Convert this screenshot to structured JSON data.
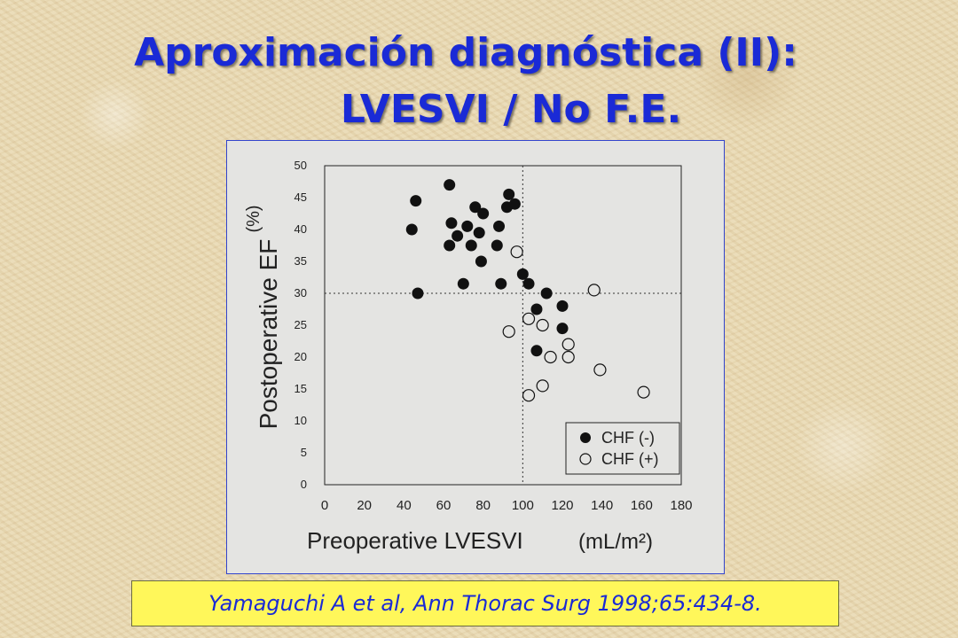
{
  "slide": {
    "title_line1": "Aproximación diagnóstica (II):",
    "title_line2": "LVESVI / No F.E.",
    "citation": "Yamaguchi A et al, Ann Thorac Surg 1998;65:434-8."
  },
  "colors": {
    "title": "#1a2ad6",
    "citation_bg": "#fff75a",
    "chart_bg": "#e4e4e2",
    "markers": "#111111"
  },
  "chart_data": {
    "type": "scatter",
    "xlabel": "Preoperative LVESVI",
    "xunit": "(mL/m²)",
    "ylabel": "Postoperative EF",
    "yunit": "(%)",
    "xlim": [
      0,
      180
    ],
    "ylim": [
      0,
      50
    ],
    "xticks": [
      0,
      20,
      40,
      60,
      80,
      100,
      120,
      140,
      160,
      180
    ],
    "yticks": [
      0,
      5,
      10,
      15,
      20,
      25,
      30,
      35,
      40,
      45,
      50
    ],
    "reference_lines": {
      "x": 100,
      "y": 30,
      "style": "dotted"
    },
    "legend_position": "bottom-right",
    "series": [
      {
        "name": "CHF (-)",
        "marker": "filled-circle",
        "points": [
          [
            44,
            40
          ],
          [
            46,
            44.5
          ],
          [
            47,
            30
          ],
          [
            63,
            47
          ],
          [
            64,
            41
          ],
          [
            63,
            37.5
          ],
          [
            67,
            39
          ],
          [
            70,
            31.5
          ],
          [
            72,
            40.5
          ],
          [
            74,
            37.5
          ],
          [
            76,
            43.5
          ],
          [
            78,
            39.5
          ],
          [
            79,
            35
          ],
          [
            80,
            42.5
          ],
          [
            87,
            37.5
          ],
          [
            88,
            40.5
          ],
          [
            89,
            31.5
          ],
          [
            92,
            43.5
          ],
          [
            93,
            45.5
          ],
          [
            96,
            44
          ],
          [
            100,
            33
          ],
          [
            103,
            31.5
          ],
          [
            107,
            27.5
          ],
          [
            112,
            30
          ],
          [
            107,
            21
          ],
          [
            120,
            28
          ],
          [
            120,
            24.5
          ]
        ]
      },
      {
        "name": "CHF (+)",
        "marker": "open-circle",
        "points": [
          [
            93,
            24
          ],
          [
            97,
            36.5
          ],
          [
            103,
            26
          ],
          [
            103,
            14
          ],
          [
            110,
            15.5
          ],
          [
            110,
            25
          ],
          [
            114,
            20
          ],
          [
            123,
            20
          ],
          [
            123,
            22
          ],
          [
            136,
            30.5
          ],
          [
            139,
            18
          ],
          [
            161,
            14.5
          ]
        ]
      }
    ]
  }
}
